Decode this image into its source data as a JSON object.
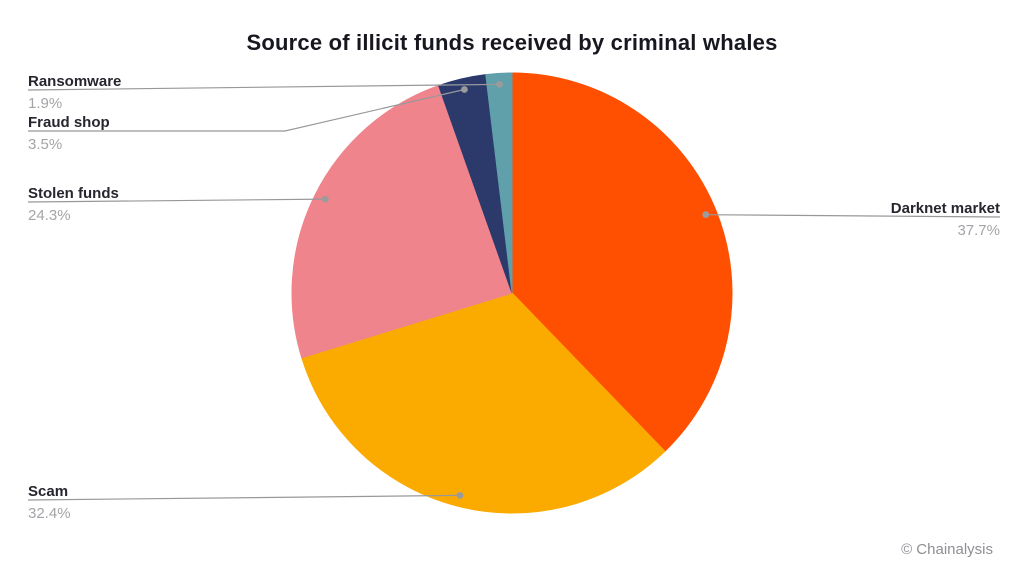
{
  "page": {
    "watermark": "© Chainalysis"
  },
  "chart_data": {
    "type": "pie",
    "title": "Source of illicit funds received by criminal whales",
    "unit": "%",
    "direction": "clockwise",
    "start_angle_deg": 0,
    "legend_position": "callout-labels",
    "slices": [
      {
        "label": "Darknet market",
        "value": 37.7,
        "display": "37.7%",
        "color": "#FF5001"
      },
      {
        "label": "Scam",
        "value": 32.4,
        "display": "32.4%",
        "color": "#FBAB00"
      },
      {
        "label": "Stolen funds",
        "value": 24.3,
        "display": "24.3%",
        "color": "#F0848D"
      },
      {
        "label": "Fraud shop",
        "value": 3.5,
        "display": "3.5%",
        "color": "#2B3A6B"
      },
      {
        "label": "Ransomware",
        "value": 1.9,
        "display": "1.9%",
        "color": "#5FA0AA"
      }
    ]
  },
  "colors": {
    "title_text": "#17171F",
    "label_text": "#26262E",
    "percent_text": "#A4A4A8",
    "leader_line": "#98989C",
    "leader_dot": "#9B9B9B",
    "background": "#FFFFFF",
    "watermark_text": "#8F8F94"
  }
}
